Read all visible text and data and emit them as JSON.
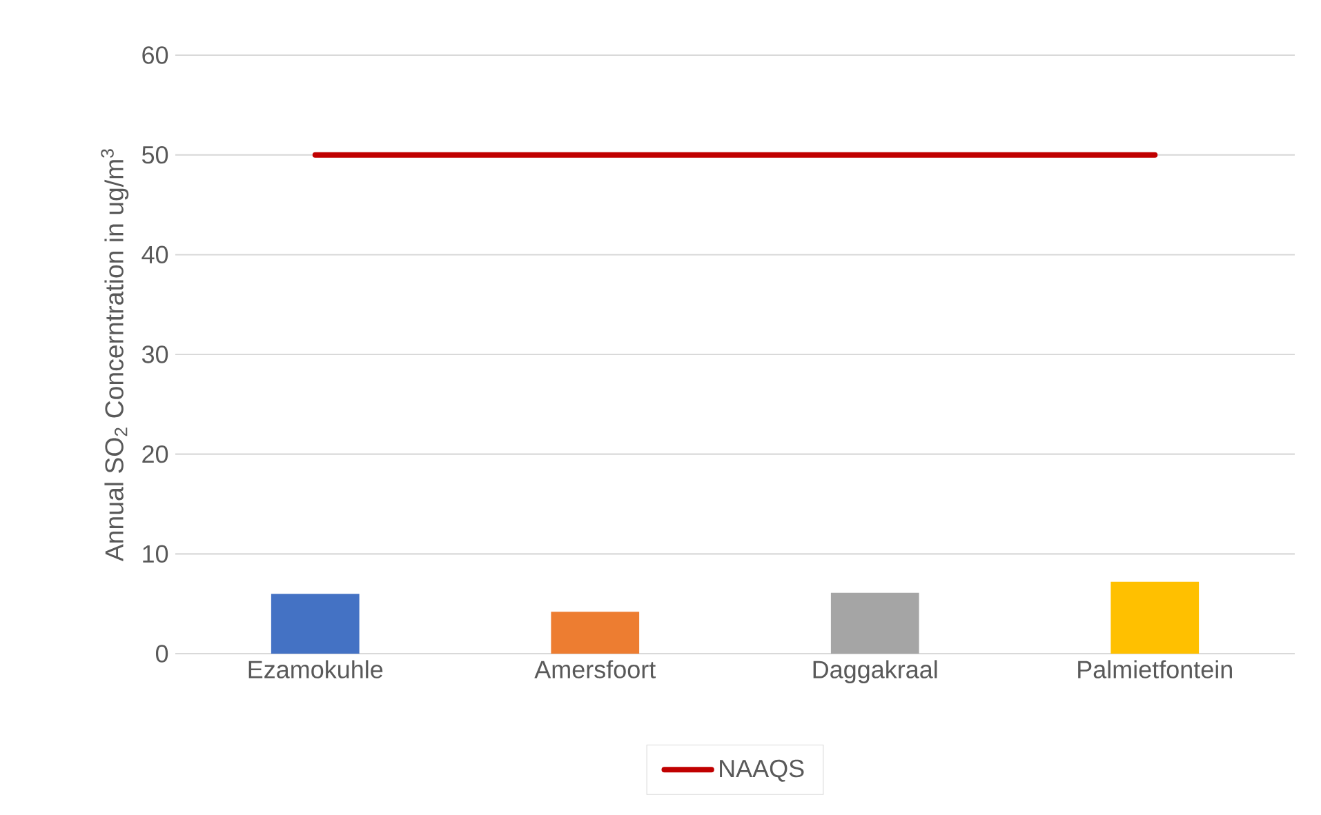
{
  "chart_data": {
    "type": "bar",
    "categories": [
      "Ezamokuhle",
      "Amersfoort",
      "Daggakraal",
      "Palmietfontein"
    ],
    "ylabel": "Annual SO$_{2}$ Concerntration in ug/m$^{3}$",
    "ylim": [
      0,
      60
    ],
    "yticks": [
      0,
      10,
      20,
      30,
      40,
      50,
      60
    ],
    "grid": "y",
    "legend": "bottom",
    "series": [
      {
        "colors": [
          "#4472c4",
          "#ed7d31",
          "#a5a5a5",
          "#ffc000"
        ],
        "values": [
          6.0,
          4.2,
          6.1,
          7.2
        ]
      },
      {
        "type": "line",
        "name": "NAAQS",
        "color": "#c00000",
        "values": [
          50,
          50,
          50,
          50
        ]
      }
    ]
  }
}
